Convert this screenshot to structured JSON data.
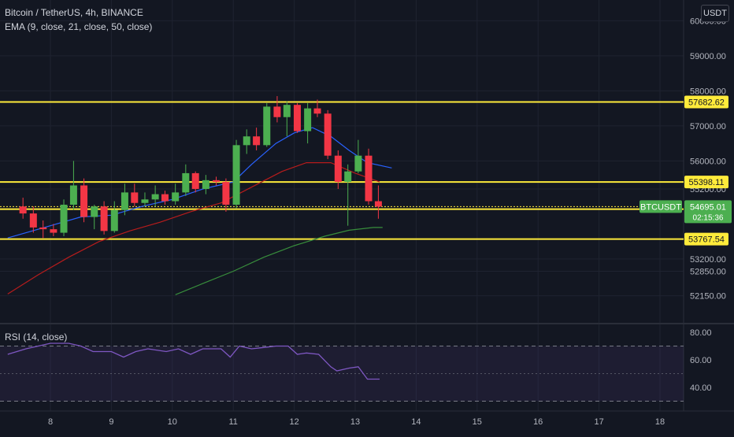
{
  "header": {
    "symbol_line": "Bitcoin / TetherUS, 4h, BINANCE",
    "ema_line": "EMA (9, close, 21, close, 50, close)",
    "rsi_line": "RSI (14, close)",
    "currency_button": "USDT"
  },
  "colors": {
    "background": "#131722",
    "up": "#4caf50",
    "down": "#f23645",
    "level_line": "#ffeb3b",
    "ema9": "#2962ff",
    "ema21": "#b71c1c",
    "ema50": "#388e3c",
    "rsi": "#7e57c2",
    "axis_text": "#b2b5be"
  },
  "chart_data": [
    {
      "type": "candlestick",
      "symbol": "BTCUSDT",
      "timeframe": "4h",
      "x_ticks": [
        "8",
        "9",
        "10",
        "11",
        "12",
        "13",
        "14",
        "15",
        "16",
        "17",
        "18"
      ],
      "y_ticks": [
        52150,
        52850,
        53200,
        55200,
        56000,
        57000,
        58000,
        59000,
        60000
      ],
      "y_tick_labels": [
        "52150.00",
        "52850.00",
        "53200.00",
        "55200.00",
        "56000.00",
        "57000.00",
        "58000.00",
        "59000.00",
        "60000.00"
      ],
      "ohlc": [
        {
          "day": 7.55,
          "o": 54700,
          "h": 54950,
          "l": 54350,
          "c": 54500
        },
        {
          "day": 7.72,
          "o": 54500,
          "h": 54700,
          "l": 53950,
          "c": 54100
        },
        {
          "day": 7.88,
          "o": 54100,
          "h": 54300,
          "l": 53800,
          "c": 54050
        },
        {
          "day": 8.05,
          "o": 54050,
          "h": 54200,
          "l": 53850,
          "c": 53950
        },
        {
          "day": 8.22,
          "o": 53950,
          "h": 54900,
          "l": 53850,
          "c": 54750
        },
        {
          "day": 8.38,
          "o": 54750,
          "h": 56000,
          "l": 54600,
          "c": 55300
        },
        {
          "day": 8.55,
          "o": 55300,
          "h": 55500,
          "l": 54250,
          "c": 54400
        },
        {
          "day": 8.72,
          "o": 54400,
          "h": 54750,
          "l": 54050,
          "c": 54700
        },
        {
          "day": 8.88,
          "o": 54700,
          "h": 54850,
          "l": 53900,
          "c": 54000
        },
        {
          "day": 9.05,
          "o": 54000,
          "h": 54850,
          "l": 53950,
          "c": 54600
        },
        {
          "day": 9.22,
          "o": 54600,
          "h": 55350,
          "l": 54450,
          "c": 55100
        },
        {
          "day": 9.38,
          "o": 55100,
          "h": 55350,
          "l": 54700,
          "c": 54800
        },
        {
          "day": 9.55,
          "o": 54800,
          "h": 55100,
          "l": 54700,
          "c": 54900
        },
        {
          "day": 9.72,
          "o": 54900,
          "h": 55300,
          "l": 54700,
          "c": 55050
        },
        {
          "day": 9.88,
          "o": 55050,
          "h": 55150,
          "l": 54750,
          "c": 54850
        },
        {
          "day": 10.05,
          "o": 54850,
          "h": 55350,
          "l": 54750,
          "c": 55100
        },
        {
          "day": 10.22,
          "o": 55100,
          "h": 55900,
          "l": 55000,
          "c": 55650
        },
        {
          "day": 10.38,
          "o": 55650,
          "h": 55700,
          "l": 55100,
          "c": 55200
        },
        {
          "day": 10.55,
          "o": 55200,
          "h": 55600,
          "l": 55050,
          "c": 55450
        },
        {
          "day": 10.72,
          "o": 55450,
          "h": 55550,
          "l": 55300,
          "c": 55400
        },
        {
          "day": 10.88,
          "o": 55400,
          "h": 55500,
          "l": 54550,
          "c": 54750
        },
        {
          "day": 11.05,
          "o": 54750,
          "h": 56600,
          "l": 54650,
          "c": 56450
        },
        {
          "day": 11.22,
          "o": 56450,
          "h": 56900,
          "l": 56200,
          "c": 56700
        },
        {
          "day": 11.38,
          "o": 56700,
          "h": 56950,
          "l": 56300,
          "c": 56450
        },
        {
          "day": 11.55,
          "o": 56450,
          "h": 57650,
          "l": 56400,
          "c": 57550
        },
        {
          "day": 11.72,
          "o": 57550,
          "h": 57850,
          "l": 57100,
          "c": 57250
        },
        {
          "day": 11.88,
          "o": 57250,
          "h": 57700,
          "l": 56700,
          "c": 57600
        },
        {
          "day": 12.05,
          "o": 57600,
          "h": 57650,
          "l": 56800,
          "c": 56850
        },
        {
          "day": 12.22,
          "o": 56850,
          "h": 57650,
          "l": 56500,
          "c": 57500
        },
        {
          "day": 12.38,
          "o": 57500,
          "h": 57750,
          "l": 57250,
          "c": 57350
        },
        {
          "day": 12.55,
          "o": 57350,
          "h": 57450,
          "l": 56050,
          "c": 56150
        },
        {
          "day": 12.72,
          "o": 56150,
          "h": 56300,
          "l": 55200,
          "c": 55400
        },
        {
          "day": 12.88,
          "o": 55400,
          "h": 55900,
          "l": 54150,
          "c": 55700
        },
        {
          "day": 13.05,
          "o": 55700,
          "h": 56600,
          "l": 55650,
          "c": 56150
        },
        {
          "day": 13.22,
          "o": 56150,
          "h": 56350,
          "l": 54750,
          "c": 54850
        },
        {
          "day": 13.38,
          "o": 54850,
          "h": 55300,
          "l": 54350,
          "c": 54695
        }
      ],
      "ema9": [
        [
          7.3,
          53800
        ],
        [
          8.0,
          54150
        ],
        [
          8.5,
          54400
        ],
        [
          9.0,
          54450
        ],
        [
          9.5,
          54700
        ],
        [
          10.0,
          54900
        ],
        [
          10.5,
          55200
        ],
        [
          11.0,
          55400
        ],
        [
          11.3,
          55900
        ],
        [
          11.7,
          56500
        ],
        [
          12.0,
          56800
        ],
        [
          12.3,
          56950
        ],
        [
          12.6,
          56700
        ],
        [
          12.9,
          56300
        ],
        [
          13.2,
          55950
        ],
        [
          13.6,
          55800
        ]
      ],
      "ema21": [
        [
          7.3,
          52200
        ],
        [
          7.8,
          52750
        ],
        [
          8.3,
          53250
        ],
        [
          8.8,
          53700
        ],
        [
          9.3,
          54000
        ],
        [
          9.8,
          54250
        ],
        [
          10.3,
          54550
        ],
        [
          10.8,
          54800
        ],
        [
          11.3,
          55250
        ],
        [
          11.8,
          55700
        ],
        [
          12.2,
          55950
        ],
        [
          12.6,
          55950
        ],
        [
          13.0,
          55650
        ],
        [
          13.4,
          55400
        ]
      ],
      "ema50": [
        [
          10.05,
          52180
        ],
        [
          10.5,
          52500
        ],
        [
          11.0,
          52850
        ],
        [
          11.5,
          53250
        ],
        [
          12.0,
          53580
        ],
        [
          12.5,
          53850
        ],
        [
          12.9,
          54020
        ],
        [
          13.3,
          54100
        ],
        [
          13.45,
          54100
        ]
      ],
      "levels": [
        {
          "value": 57682.62,
          "label": "57682.62"
        },
        {
          "value": 55398.11,
          "label": "55398.11"
        },
        {
          "value": 54621.72,
          "label": "54621.72"
        },
        {
          "value": 53767.54,
          "label": "53767.54"
        }
      ],
      "current_price": {
        "symbol": "BTCUSDT",
        "price_label": "54695.01",
        "countdown": "02:15:36",
        "value": 54695.01
      }
    },
    {
      "type": "line",
      "name": "RSI (14, close)",
      "y_ticks": [
        40,
        60,
        80
      ],
      "y_tick_labels": [
        "40.00",
        "60.00",
        "80.00"
      ],
      "bands": [
        30,
        50,
        70
      ],
      "points": [
        [
          7.3,
          64
        ],
        [
          7.6,
          68
        ],
        [
          8.0,
          72
        ],
        [
          8.3,
          72
        ],
        [
          8.5,
          70
        ],
        [
          8.7,
          66
        ],
        [
          9.0,
          66
        ],
        [
          9.2,
          62
        ],
        [
          9.4,
          66
        ],
        [
          9.6,
          68
        ],
        [
          9.9,
          66
        ],
        [
          10.1,
          68
        ],
        [
          10.3,
          64
        ],
        [
          10.5,
          68
        ],
        [
          10.8,
          68
        ],
        [
          10.95,
          62
        ],
        [
          11.1,
          70
        ],
        [
          11.3,
          68
        ],
        [
          11.5,
          69
        ],
        [
          11.7,
          70
        ],
        [
          11.9,
          70
        ],
        [
          12.05,
          64
        ],
        [
          12.2,
          65
        ],
        [
          12.4,
          64
        ],
        [
          12.6,
          55
        ],
        [
          12.7,
          52
        ],
        [
          12.9,
          54
        ],
        [
          13.05,
          55
        ],
        [
          13.2,
          46
        ],
        [
          13.4,
          46
        ]
      ]
    }
  ]
}
